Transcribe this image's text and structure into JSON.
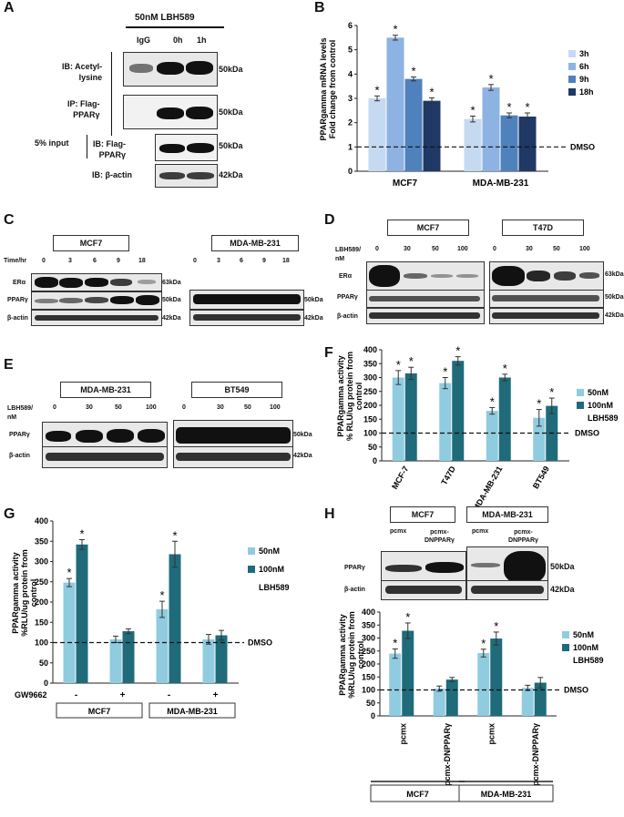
{
  "panels": {
    "A": {
      "letter": "A",
      "treatment": "50nM LBH589",
      "lanes": [
        "IgG",
        "0h",
        "1h"
      ],
      "rows": [
        {
          "label": "IB: Acetyl-\nlysine",
          "mw": "50kDa"
        },
        {
          "label": "IP: Flag-\nPPARγ",
          "mw": "50kDa"
        },
        {
          "label": "IB: Flag-\nPPARγ",
          "mw": "50kDa"
        },
        {
          "label": "IB: β-actin",
          "mw": "42kDa"
        }
      ],
      "input_label": "5% input"
    },
    "B": {
      "letter": "B"
    },
    "C": {
      "letter": "C",
      "cell_lines": [
        "MCF7",
        "MDA-MB-231"
      ],
      "time_label": "Time/hr",
      "times": [
        "0",
        "3",
        "6",
        "9",
        "18"
      ],
      "rows": [
        {
          "label": "ERα",
          "mw": "63kDa"
        },
        {
          "label": "PPARγ",
          "mw": "50kDa"
        },
        {
          "label": "β-actin",
          "mw": "42kDa"
        }
      ]
    },
    "D": {
      "letter": "D",
      "cell_lines": [
        "MCF7",
        "T47D"
      ],
      "dose_label": "LBH589/\nnM",
      "doses": [
        "0",
        "30",
        "50",
        "100"
      ],
      "rows": [
        {
          "label": "ERα",
          "mw": "63kDa"
        },
        {
          "label": "PPARγ",
          "mw": "50kDa"
        },
        {
          "label": "β-actin",
          "mw": "42kDa"
        }
      ]
    },
    "E": {
      "letter": "E",
      "cell_lines": [
        "MDA-MB-231",
        "BT549"
      ],
      "dose_label": "LBH589/\nnM",
      "doses": [
        "0",
        "30",
        "50",
        "100"
      ],
      "rows": [
        {
          "label": "PPARγ",
          "mw": "50kDa"
        },
        {
          "label": "β-actin",
          "mw": "42kDa"
        }
      ]
    },
    "F": {
      "letter": "F"
    },
    "G": {
      "letter": "G",
      "inhibitor": "GW9662",
      "signs": [
        "-",
        "+",
        "-",
        "+"
      ],
      "groups": [
        "MCF7",
        "MDA-MB-231"
      ]
    },
    "H": {
      "letter": "H",
      "cell_lines": [
        "MCF7",
        "MDA-MB-231"
      ],
      "constructs": [
        "pcmx",
        "pcmx-\nDNPPARγ",
        "pcmx",
        "pcmx-\nDNPPARγ"
      ],
      "rows": [
        {
          "label": "PPARγ",
          "mw": "50kDa"
        },
        {
          "label": "β-actin",
          "mw": "42kDa"
        }
      ],
      "groups": [
        "MCF7",
        "MDA-MB-231"
      ]
    }
  },
  "chart_data": [
    {
      "id": "B",
      "type": "bar",
      "ylabel": "PPARgamma mRNA levels\nFold change from control",
      "ylim": [
        0,
        6
      ],
      "yticks": [
        "0",
        "1",
        "2",
        "3",
        "4",
        "5",
        "6"
      ],
      "categories": [
        "MCF7",
        "MDA-MB-231"
      ],
      "series": [
        {
          "name": "3h",
          "color": "#c5d9f1",
          "values": [
            3.0,
            2.15
          ],
          "err": [
            0.1,
            0.12
          ]
        },
        {
          "name": "6h",
          "color": "#8db3e2",
          "values": [
            5.5,
            3.45
          ],
          "err": [
            0.1,
            0.12
          ]
        },
        {
          "name": "9h",
          "color": "#4f81bd",
          "values": [
            3.8,
            2.3
          ],
          "err": [
            0.08,
            0.1
          ]
        },
        {
          "name": "18h",
          "color": "#1f3864",
          "values": [
            2.9,
            2.25
          ],
          "err": [
            0.12,
            0.15
          ]
        }
      ],
      "stars": "*",
      "baseline": {
        "value": 1,
        "label": "DMSO"
      }
    },
    {
      "id": "F",
      "type": "bar",
      "ylabel": "PPARgamma activity\n% RLU/ug protein from\ncontrol",
      "ylim": [
        0,
        400
      ],
      "yticks": [
        "0",
        "50",
        "100",
        "150",
        "200",
        "250",
        "300",
        "350",
        "400"
      ],
      "categories": [
        "MCF-7",
        "T47D",
        "MDA-MB-231",
        "BT549"
      ],
      "series": [
        {
          "name": "50nM",
          "color": "#8fcce0",
          "values": [
            300,
            280,
            180,
            155
          ],
          "err": [
            25,
            20,
            12,
            30
          ]
        },
        {
          "name": "100nM",
          "color": "#1f6b7a",
          "values": [
            315,
            360,
            300,
            198
          ],
          "err": [
            22,
            15,
            12,
            28
          ]
        }
      ],
      "legend_note": "LBH589",
      "stars": "*",
      "baseline": {
        "value": 100,
        "label": "DMSO"
      }
    },
    {
      "id": "G",
      "type": "bar",
      "ylabel": "PPARgamma activity\n%RLU/ug protein from\ncontrol",
      "ylim": [
        0,
        400
      ],
      "yticks": [
        "0",
        "50",
        "100",
        "150",
        "200",
        "250",
        "300",
        "350",
        "400"
      ],
      "categories": [
        "MCF7 -",
        "MCF7 +",
        "MDA-MB-231 -",
        "MDA-MB-231 +"
      ],
      "series": [
        {
          "name": "50nM",
          "color": "#8fcce0",
          "values": [
            248,
            108,
            182,
            108
          ],
          "err": [
            10,
            8,
            20,
            12
          ]
        },
        {
          "name": "100nM",
          "color": "#1f6b7a",
          "values": [
            342,
            128,
            318,
            118
          ],
          "err": [
            12,
            6,
            32,
            12
          ]
        }
      ],
      "star_flags": [
        true,
        false,
        true,
        false
      ],
      "legend_note": "LBH589",
      "stars": "*",
      "baseline": {
        "value": 100,
        "label": "DMSO"
      }
    },
    {
      "id": "H",
      "type": "bar",
      "ylabel": "PPARgamma activity\n%RLU/ug protein from\ncontrol",
      "ylim": [
        0,
        400
      ],
      "yticks": [
        "0",
        "50",
        "100",
        "150",
        "200",
        "250",
        "300",
        "350",
        "400"
      ],
      "categories": [
        "pcmx",
        "pcmx-DNPPARγ",
        "pcmx",
        "pcmx-DNPPARγ"
      ],
      "series": [
        {
          "name": "50nM",
          "color": "#8fcce0",
          "values": [
            240,
            105,
            242,
            108
          ],
          "err": [
            18,
            10,
            15,
            10
          ]
        },
        {
          "name": "100nM",
          "color": "#1f6b7a",
          "values": [
            328,
            140,
            298,
            128
          ],
          "err": [
            30,
            8,
            25,
            20
          ]
        }
      ],
      "star_flags": [
        true,
        false,
        true,
        false
      ],
      "legend_note": "LBH589",
      "stars": "*",
      "baseline": {
        "value": 100,
        "label": "DMSO"
      }
    }
  ]
}
